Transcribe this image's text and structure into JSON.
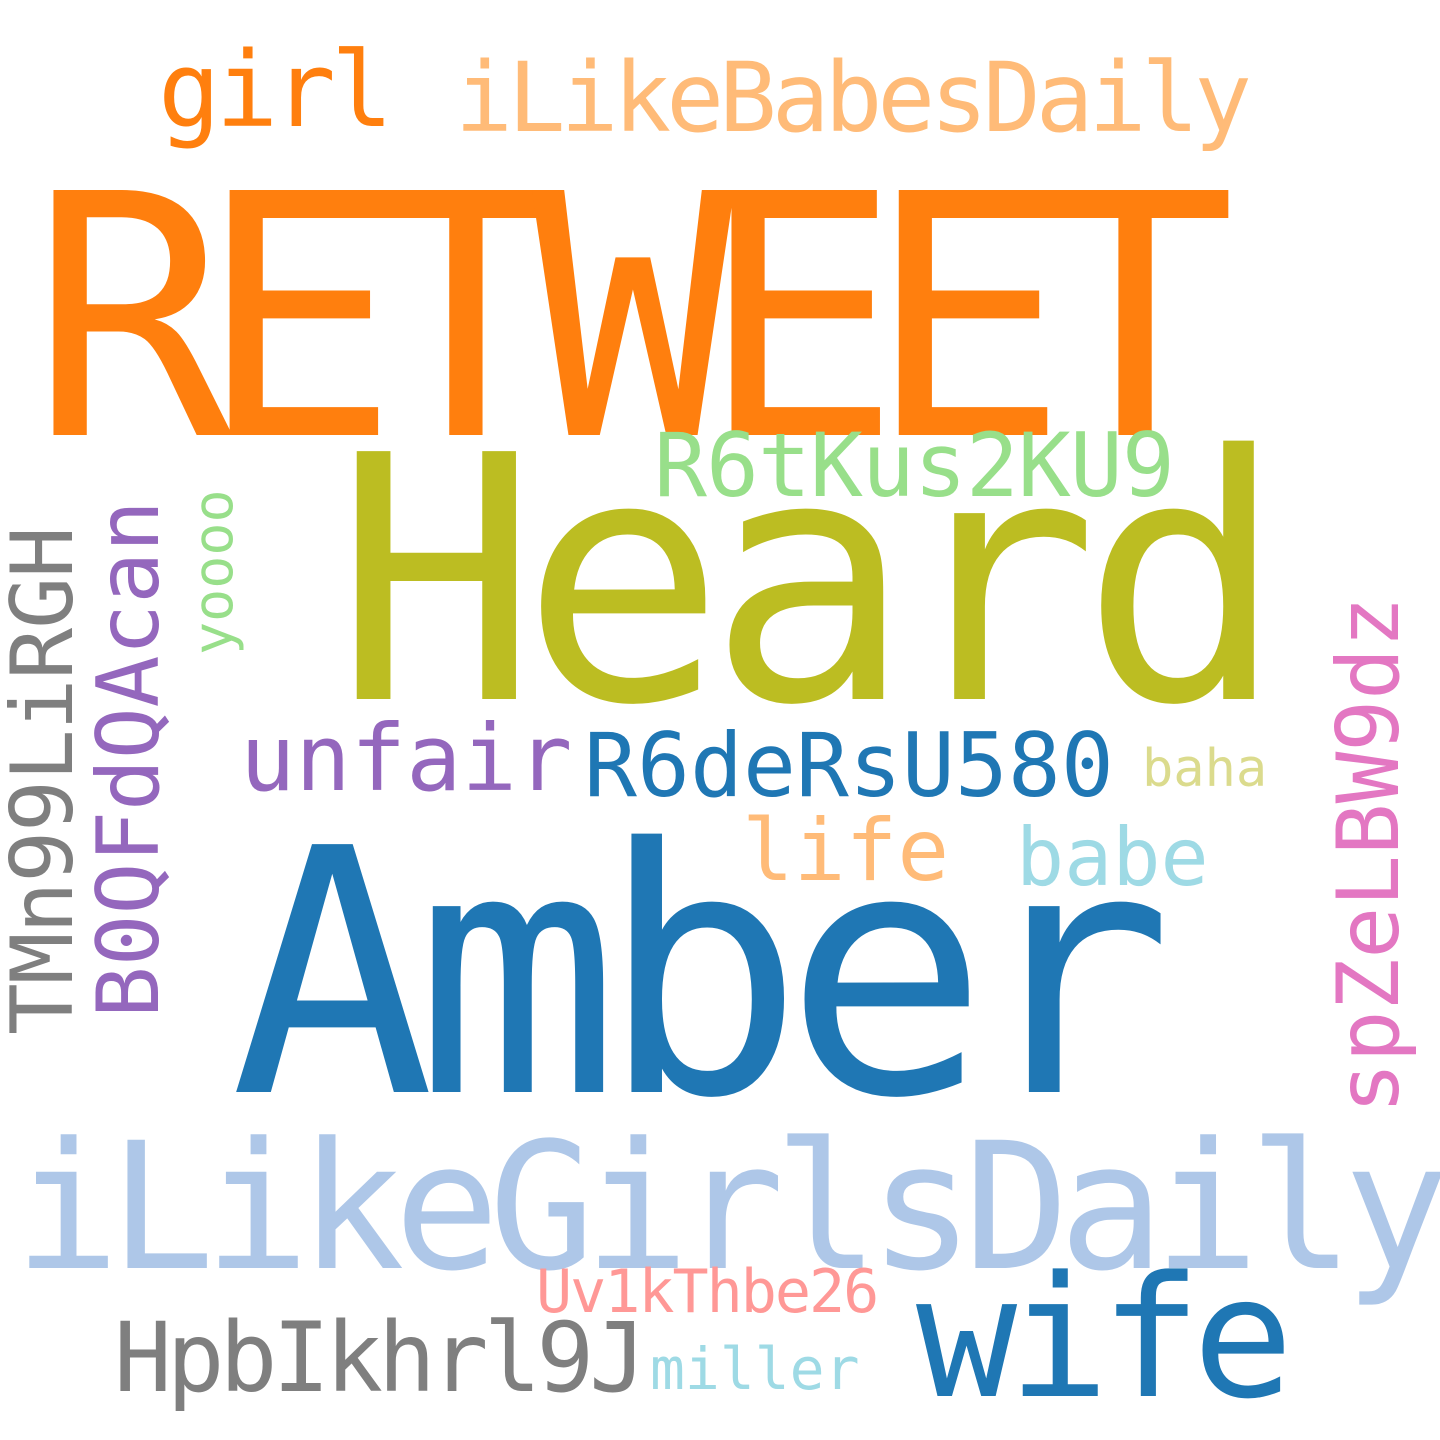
{
  "words": [
    {
      "text": "RETWEET",
      "color": "#ff7f0e"
    },
    {
      "text": "Heard",
      "color": "#bcbd22"
    },
    {
      "text": "Amber",
      "color": "#1f77b4"
    },
    {
      "text": "iLikeGirlsDaily",
      "color": "#aec7e8"
    },
    {
      "text": "iLikeBabesDaily",
      "color": "#ffbb78"
    },
    {
      "text": "girl",
      "color": "#ff7f0e"
    },
    {
      "text": "R6tKus2KU9",
      "color": "#98df8a"
    },
    {
      "text": "unfair",
      "color": "#9467bd"
    },
    {
      "text": "R6deRsU580",
      "color": "#1f77b4"
    },
    {
      "text": "baha",
      "color": "#dbdb8d"
    },
    {
      "text": "life",
      "color": "#ffbb78"
    },
    {
      "text": "babe",
      "color": "#9edae5"
    },
    {
      "text": "TMn99LiRGH",
      "color": "#7f7f7f"
    },
    {
      "text": "B0QFdQAcan",
      "color": "#9467bd"
    },
    {
      "text": "yoooo",
      "color": "#98df8a"
    },
    {
      "text": "spZeLBW9dz",
      "color": "#e377c2"
    },
    {
      "text": "wife",
      "color": "#1f77b4"
    },
    {
      "text": "Uv1kThbe26",
      "color": "#ff9896"
    },
    {
      "text": "HpbIkhrl9J",
      "color": "#7f7f7f"
    },
    {
      "text": "miller",
      "color": "#9edae5"
    }
  ]
}
